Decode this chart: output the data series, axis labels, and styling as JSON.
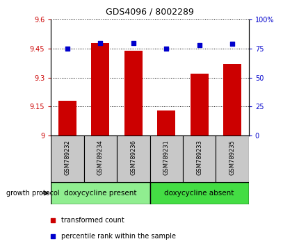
{
  "title": "GDS4096 / 8002289",
  "samples": [
    "GSM789232",
    "GSM789234",
    "GSM789236",
    "GSM789231",
    "GSM789233",
    "GSM789235"
  ],
  "bar_values": [
    9.18,
    9.48,
    9.44,
    9.13,
    9.32,
    9.37
  ],
  "percentile_values": [
    75,
    80,
    80,
    75,
    78,
    79
  ],
  "ylim_left": [
    9.0,
    9.6
  ],
  "ylim_right": [
    0,
    100
  ],
  "yticks_left": [
    9.0,
    9.15,
    9.3,
    9.45,
    9.6
  ],
  "ytick_labels_left": [
    "9",
    "9.15",
    "9.3",
    "9.45",
    "9.6"
  ],
  "yticks_right": [
    0,
    25,
    50,
    75,
    100
  ],
  "ytick_labels_right": [
    "0",
    "25",
    "50",
    "75",
    "100%"
  ],
  "bar_color": "#cc0000",
  "dot_color": "#0000cc",
  "grid_color": "#000000",
  "groups": [
    {
      "label": "doxycycline present",
      "indices": [
        0,
        1,
        2
      ],
      "color": "#90EE90"
    },
    {
      "label": "doxycycline absent",
      "indices": [
        3,
        4,
        5
      ],
      "color": "#44dd44"
    }
  ],
  "group_label": "growth protocol",
  "sample_bg": "#c8c8c8",
  "legend_items": [
    {
      "label": "transformed count",
      "color": "#cc0000",
      "marker": "s"
    },
    {
      "label": "percentile rank within the sample",
      "color": "#0000cc",
      "marker": "s"
    }
  ],
  "background_color": "#ffffff",
  "tick_label_color_left": "#cc0000",
  "tick_label_color_right": "#0000cc",
  "bar_baseline": 9.0,
  "bar_width": 0.55
}
